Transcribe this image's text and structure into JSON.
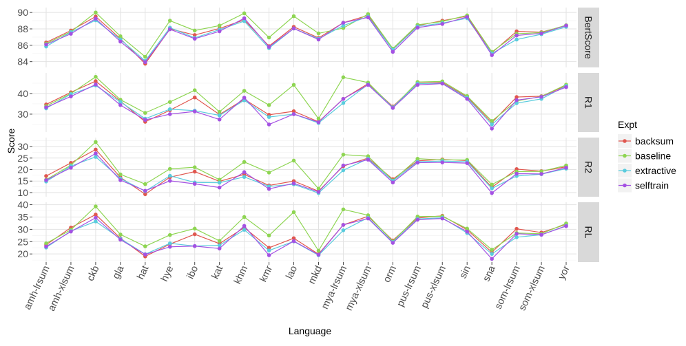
{
  "chart_data": {
    "type": "line",
    "xlabel": "Language",
    "ylabel": "Score",
    "legend": {
      "title": "Expt",
      "placement": "right"
    },
    "grid": true,
    "categories": [
      "amh-lrsum",
      "amh-xlsum",
      "ckb",
      "gla",
      "hat",
      "hye",
      "ibo",
      "kat",
      "khm",
      "kmr",
      "lao",
      "mkd",
      "mya-lrsum",
      "mya-xlsum",
      "orm",
      "pus-lrsum",
      "pus-xlsum",
      "sin",
      "sna",
      "som-lrsum",
      "som-xlsum",
      "yor"
    ],
    "series_names": [
      "backsum",
      "baseline",
      "extractive",
      "selftrain"
    ],
    "colors": {
      "backsum": "#E0574F",
      "baseline": "#8ED552",
      "extractive": "#5ACCDD",
      "selftrain": "#A451E3"
    },
    "facets": [
      {
        "name": "BertScore",
        "ylim": [
          83.3,
          90.6
        ],
        "yticks": [
          84,
          86,
          88,
          90
        ],
        "series": {
          "backsum": [
            86.35,
            87.8,
            89.5,
            86.8,
            83.75,
            88.0,
            87.25,
            88.05,
            89.1,
            85.9,
            88.25,
            86.9,
            88.75,
            89.65,
            85.5,
            88.4,
            89.0,
            89.55,
            85.1,
            87.7,
            87.6,
            88.4
          ],
          "baseline": [
            86.2,
            87.65,
            90.0,
            87.1,
            84.6,
            89.0,
            87.8,
            88.4,
            89.9,
            86.95,
            89.55,
            87.45,
            88.1,
            89.8,
            85.6,
            88.5,
            88.9,
            89.65,
            85.2,
            87.4,
            87.55,
            88.45
          ],
          "extractive": [
            85.85,
            87.6,
            89.05,
            86.7,
            84.1,
            88.15,
            86.9,
            87.9,
            88.95,
            85.65,
            88.05,
            86.8,
            88.4,
            89.5,
            85.45,
            88.3,
            88.7,
            89.3,
            85.0,
            86.7,
            87.35,
            88.25
          ],
          "selftrain": [
            86.1,
            87.4,
            89.25,
            86.45,
            83.95,
            87.95,
            86.8,
            87.7,
            89.3,
            85.8,
            88.05,
            86.7,
            88.75,
            89.4,
            85.2,
            88.15,
            88.6,
            89.45,
            84.8,
            87.2,
            87.45,
            88.4
          ]
        }
      },
      {
        "name": "R1",
        "ylim": [
          21.3,
          50
        ],
        "yticks": [
          30,
          40
        ],
        "series": {
          "backsum": [
            34.7,
            40.6,
            46.0,
            36.3,
            26.3,
            31.9,
            38.1,
            29.8,
            37.2,
            29.7,
            31.4,
            26.3,
            37.4,
            44.8,
            33.7,
            45.0,
            45.4,
            38.3,
            25.9,
            38.3,
            38.7,
            43.8
          ],
          "baseline": [
            33.9,
            40.0,
            48.1,
            37.0,
            30.6,
            35.9,
            41.6,
            31.1,
            41.3,
            34.4,
            44.2,
            27.8,
            47.9,
            45.3,
            33.3,
            45.6,
            45.9,
            38.8,
            26.7,
            36.4,
            38.6,
            44.3
          ],
          "extractive": [
            32.8,
            39.7,
            43.9,
            35.9,
            27.8,
            32.4,
            31.7,
            29.4,
            36.7,
            28.6,
            30.0,
            25.7,
            35.4,
            44.4,
            33.3,
            44.8,
            45.0,
            37.9,
            25.0,
            35.3,
            37.4,
            43.7
          ],
          "selftrain": [
            33.3,
            38.6,
            44.4,
            34.4,
            27.2,
            30.0,
            31.3,
            27.4,
            38.0,
            25.0,
            30.0,
            26.1,
            37.4,
            44.2,
            33.0,
            44.2,
            44.8,
            37.4,
            23.0,
            36.8,
            38.4,
            43.1
          ]
        }
      },
      {
        "name": "R2",
        "ylim": [
          8.2,
          33.9
        ],
        "yticks": [
          10,
          15,
          20,
          25,
          30
        ],
        "series": {
          "backsum": [
            17.2,
            22.9,
            28.7,
            16.6,
            9.3,
            16.7,
            19.1,
            14.9,
            17.9,
            13.1,
            15.0,
            10.6,
            21.5,
            25.0,
            15.8,
            23.8,
            24.4,
            23.9,
            12.3,
            20.2,
            19.3,
            21.2
          ],
          "baseline": [
            15.6,
            21.9,
            32.0,
            17.9,
            13.7,
            20.3,
            21.0,
            15.6,
            23.3,
            18.7,
            23.9,
            11.7,
            26.5,
            25.8,
            15.3,
            24.7,
            24.2,
            24.2,
            13.5,
            19.1,
            19.2,
            21.8
          ],
          "extractive": [
            14.8,
            21.5,
            25.5,
            16.1,
            10.6,
            17.3,
            14.4,
            14.3,
            16.8,
            12.7,
            13.6,
            9.8,
            19.7,
            24.7,
            15.1,
            23.4,
            23.7,
            23.4,
            11.8,
            17.2,
            18.0,
            20.4
          ],
          "selftrain": [
            15.4,
            20.8,
            27.0,
            15.4,
            10.8,
            15.1,
            13.8,
            12.2,
            18.9,
            11.6,
            14.0,
            10.3,
            21.8,
            24.3,
            14.4,
            23.0,
            23.1,
            22.8,
            9.8,
            18.2,
            18.1,
            20.8
          ]
        }
      },
      {
        "name": "RL",
        "ylim": [
          16.7,
          41
        ],
        "yticks": [
          20,
          25,
          30,
          35,
          40
        ],
        "series": {
          "backsum": [
            23.7,
            30.7,
            36.0,
            26.4,
            19.0,
            24.0,
            28.0,
            24.2,
            30.7,
            22.5,
            26.4,
            19.9,
            31.8,
            35.3,
            25.5,
            34.6,
            35.5,
            29.8,
            20.7,
            30.2,
            28.7,
            32.0
          ],
          "baseline": [
            24.3,
            29.8,
            39.3,
            27.9,
            23.1,
            27.7,
            30.3,
            25.3,
            35.0,
            27.5,
            37.0,
            21.3,
            38.1,
            35.7,
            25.1,
            35.2,
            35.3,
            30.3,
            21.7,
            28.5,
            28.2,
            32.4
          ],
          "extractive": [
            22.6,
            29.3,
            33.2,
            26.2,
            19.9,
            24.3,
            23.2,
            23.5,
            29.8,
            21.4,
            25.1,
            19.5,
            29.6,
            34.7,
            24.8,
            34.2,
            34.7,
            28.5,
            20.0,
            26.8,
            27.8,
            31.5
          ],
          "selftrain": [
            23.0,
            29.1,
            34.7,
            25.8,
            19.8,
            22.9,
            23.2,
            22.2,
            31.4,
            19.5,
            25.2,
            19.7,
            31.8,
            34.4,
            24.5,
            33.9,
            34.4,
            29.1,
            18.0,
            28.2,
            27.8,
            31.3
          ]
        }
      }
    ]
  }
}
